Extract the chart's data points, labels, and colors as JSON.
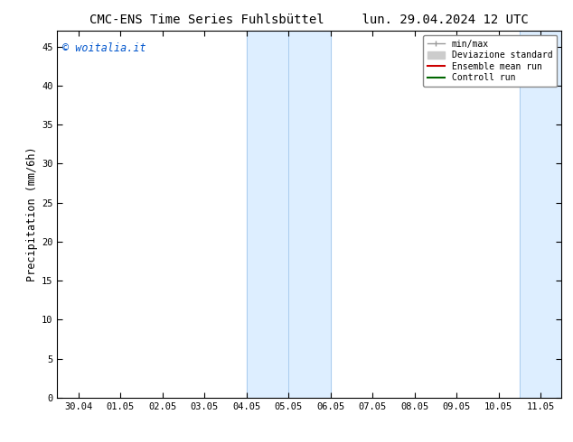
{
  "title_left": "CMC-ENS Time Series Fuhlsbüttel",
  "title_right": "lun. 29.04.2024 12 UTC",
  "ylabel": "Precipitation (mm/6h)",
  "watermark": "© woitalia.it",
  "watermark_color": "#0055cc",
  "xtick_labels": [
    "30.04",
    "01.05",
    "02.05",
    "03.05",
    "04.05",
    "05.05",
    "06.05",
    "07.05",
    "08.05",
    "09.05",
    "10.05",
    "11.05"
  ],
  "ylim_min": 0,
  "ylim_max": 47,
  "yticks": [
    0,
    5,
    10,
    15,
    20,
    25,
    30,
    35,
    40,
    45
  ],
  "shaded_regions": [
    {
      "xstart": 4.0,
      "xend": 5.0,
      "color": "#ddeeff"
    },
    {
      "xstart": 5.0,
      "xend": 6.0,
      "color": "#ddeeff"
    },
    {
      "xstart": 10.5,
      "xend": 11.5,
      "color": "#ddeeff"
    }
  ],
  "shaded_border_color": "#aaccee",
  "legend_labels": [
    "min/max",
    "Deviazione standard",
    "Ensemble mean run",
    "Controll run"
  ],
  "legend_colors": [
    "#999999",
    "#cccccc",
    "#cc0000",
    "#006600"
  ],
  "bg_color": "#ffffff",
  "tick_label_fontsize": 7.5,
  "axis_label_fontsize": 8.5,
  "title_fontsize": 10,
  "watermark_fontsize": 8.5
}
